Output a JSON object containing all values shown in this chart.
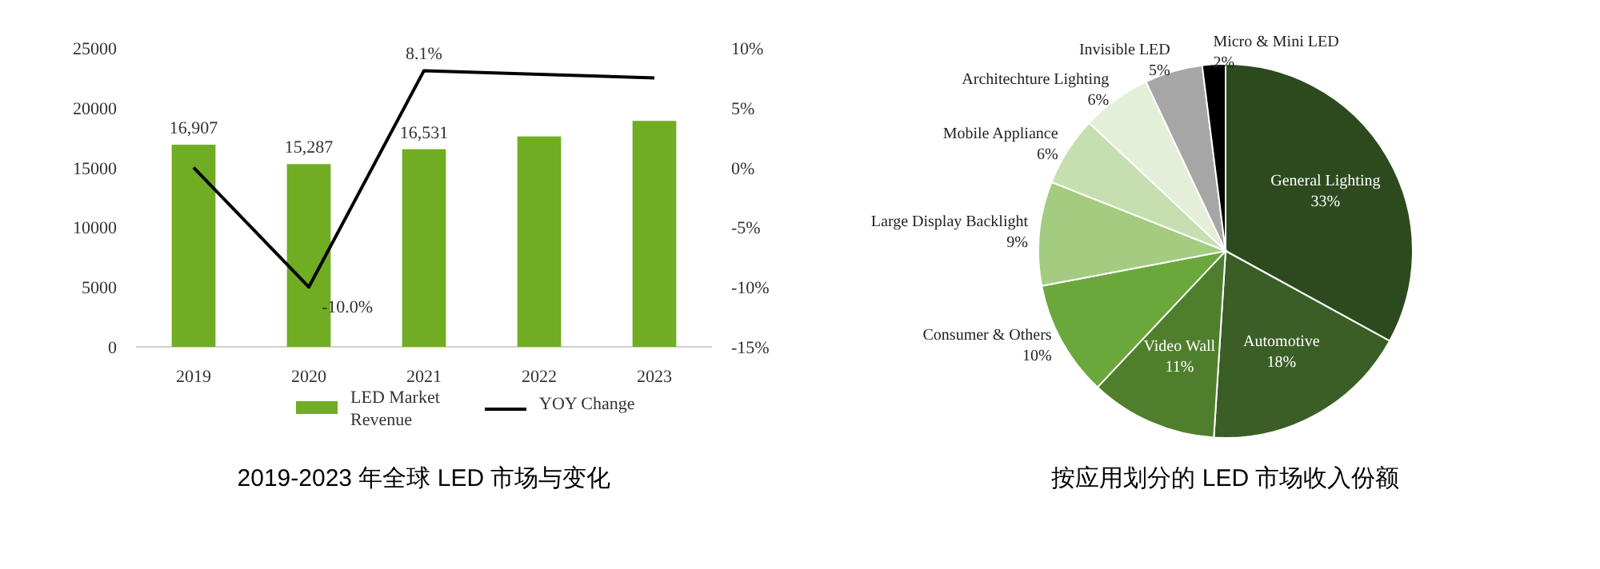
{
  "chart_data": [
    {
      "type": "bar",
      "title": "2019-2023 年全球 LED 市场与变化",
      "categories": [
        "2019",
        "2020",
        "2021",
        "2022",
        "2023"
      ],
      "series": [
        {
          "name": "LED Market Revenue",
          "type": "bar",
          "color": "#70ad23",
          "values": [
            16907,
            15287,
            16531,
            17600,
            18900
          ],
          "value_labels": [
            "16,907",
            "15,287",
            "16,531",
            null,
            null
          ]
        },
        {
          "name": "YOY Change",
          "type": "line",
          "axis": "y2",
          "color": "#000000",
          "values": [
            0,
            -10.0,
            8.1,
            7.8,
            7.5
          ],
          "value_labels": [
            null,
            "-10.0%",
            "8.1%",
            null,
            null
          ]
        }
      ],
      "ylim": [
        0,
        25000
      ],
      "yticks": [
        0,
        5000,
        10000,
        15000,
        20000,
        25000
      ],
      "y2lim": [
        -15,
        10
      ],
      "y2ticks": [
        {
          "value": -15,
          "label": "-15%"
        },
        {
          "value": -10,
          "label": "-10%"
        },
        {
          "value": -5,
          "label": "-5%"
        },
        {
          "value": 0,
          "label": "0%"
        },
        {
          "value": 5,
          "label": "5%"
        },
        {
          "value": 10,
          "label": "10%"
        }
      ],
      "legend": "bottom",
      "marker": "none"
    },
    {
      "type": "pie",
      "title": "按应用划分的 LED 市场收入份额",
      "categories": [
        "General Lighting",
        "Automotive",
        "Video Wall",
        "Consumer & Others",
        "Large Display Backlight",
        "Mobile Appliance",
        "Architechture Lighting",
        "Invisible LED",
        "Micro & Mini LED"
      ],
      "values": [
        33,
        18,
        11,
        10,
        9,
        6,
        6,
        5,
        2
      ],
      "colors": [
        "#2d4a1e",
        "#3a5e25",
        "#4f7f2c",
        "#6aa83c",
        "#a3cc80",
        "#c5dfb0",
        "#e4efd9",
        "#a6a6a6",
        "#000000"
      ],
      "value_labels": [
        "33%",
        "18%",
        "11%",
        "10%",
        "9%",
        "6%",
        "6%",
        "5%",
        "2%"
      ],
      "legend": false
    }
  ]
}
